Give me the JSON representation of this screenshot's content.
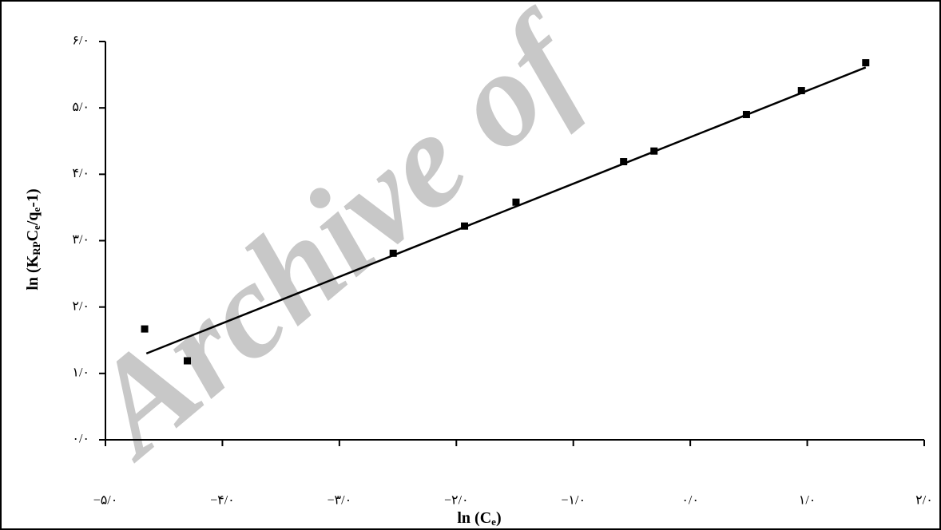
{
  "chart_data": {
    "type": "scatter",
    "watermark": "Archive of",
    "x_label": [
      "ln (C",
      "e",
      ")"
    ],
    "y_label": [
      "ln (K",
      "RP",
      "C",
      "e",
      "/q",
      "e",
      "-1)"
    ],
    "x": [
      -4.665,
      -4.3,
      -2.54,
      -1.93,
      -1.49,
      -0.57,
      -0.31,
      0.48,
      0.95,
      1.5
    ],
    "values": [
      1.67,
      1.19,
      2.81,
      3.22,
      3.58,
      4.19,
      4.35,
      4.9,
      5.26,
      5.68
    ],
    "color": "#000000",
    "trendline": {
      "x": [
        -4.65,
        1.5
      ],
      "y": [
        1.3,
        5.61
      ]
    },
    "xlim": [
      -5,
      2
    ],
    "ylim": [
      0,
      6
    ],
    "xticks": [
      {
        "value": -5,
        "label": "−۵/۰"
      },
      {
        "value": -4,
        "label": "−۴/۰"
      },
      {
        "value": -3,
        "label": "−۳/۰"
      },
      {
        "value": -2,
        "label": "−۲/۰"
      },
      {
        "value": -1,
        "label": "−۱/۰"
      },
      {
        "value": 0,
        "label": "۰/۰"
      },
      {
        "value": 1,
        "label": "۱/۰"
      },
      {
        "value": 2,
        "label": "۲/۰"
      }
    ],
    "yticks": [
      {
        "value": 0,
        "label": "۰/۰"
      },
      {
        "value": 1,
        "label": "۱/۰"
      },
      {
        "value": 2,
        "label": "۲/۰"
      },
      {
        "value": 3,
        "label": "۳/۰"
      },
      {
        "value": 4,
        "label": "۴/۰"
      },
      {
        "value": 5,
        "label": "۵/۰"
      },
      {
        "value": 6,
        "label": "۶/۰"
      }
    ]
  }
}
